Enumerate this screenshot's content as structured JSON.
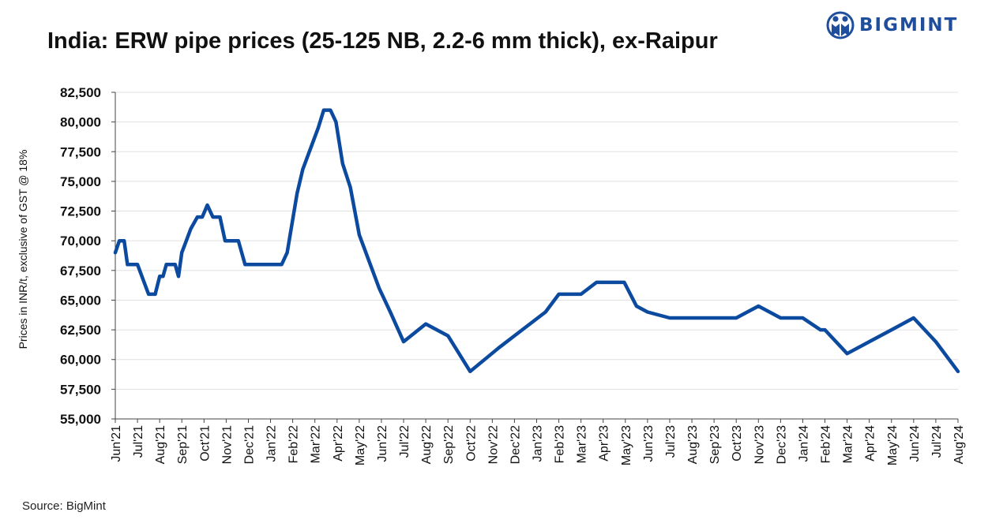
{
  "header": {
    "title": "India: ERW pipe prices (25-125 NB, 2.2-6 mm thick), ex-Raipur",
    "logo_text": "BIGMINT",
    "logo_icon": "bigmint-logo-icon"
  },
  "footer": {
    "source": "Source: BigMint"
  },
  "colors": {
    "line": "#0b4a9e",
    "grid": "#e0e0e0",
    "brand": "#1f4e9c"
  },
  "chart_data": {
    "type": "line",
    "title": "India: ERW pipe prices (25-125 NB, 2.2-6 mm thick), ex-Raipur",
    "xlabel": "",
    "ylabel": "Prices in INR/t, exclusive of GST @ 18%",
    "ylim": [
      55000,
      82500
    ],
    "ytick_step": 2500,
    "yticks": [
      "55,000",
      "57,500",
      "60,000",
      "62,500",
      "65,000",
      "67,500",
      "70,000",
      "72,500",
      "75,000",
      "77,500",
      "80,000",
      "82,500"
    ],
    "xlim": [
      0,
      38
    ],
    "categories": [
      "Jun'21",
      "Jul'21",
      "Aug'21",
      "Sep'21",
      "Oct'21",
      "Nov'21",
      "Dec'21",
      "Jan'22",
      "Feb'22",
      "Mar'22",
      "Apr'22",
      "May'22",
      "Jun'22",
      "Jul'22",
      "Aug'22",
      "Sep'22",
      "Oct'22",
      "Nov'22",
      "Dec'22",
      "Jan'23",
      "Feb'23",
      "Mar'23",
      "Apr'23",
      "May'23",
      "Jun'23",
      "Jul'23",
      "Aug'23",
      "Sep'23",
      "Oct'23",
      "Nov'23",
      "Dec'23",
      "Jan'24",
      "Feb'24",
      "Mar'24",
      "Apr'24",
      "May'24",
      "Jun'24",
      "Jul'24",
      "Aug'24"
    ],
    "grid": true,
    "series": [
      {
        "name": "ERW pipe price",
        "x": [
          0,
          0.18,
          0.4,
          0.55,
          0.75,
          1.0,
          1.5,
          1.65,
          1.8,
          2.0,
          2.15,
          2.3,
          2.5,
          2.7,
          2.85,
          3.0,
          3.2,
          3.4,
          3.7,
          3.92,
          4.15,
          4.4,
          4.72,
          4.95,
          5.1,
          5.25,
          5.55,
          5.85,
          6.2,
          6.65,
          7.05,
          7.5,
          7.75,
          8.2,
          8.45,
          8.85,
          9.15,
          9.4,
          9.7,
          9.95,
          10.25,
          10.6,
          11.0,
          11.2,
          11.5,
          11.9,
          12.4,
          13.0,
          14.0,
          15.0,
          16.0,
          17.3,
          18.0,
          19.4,
          20.0,
          20.4,
          21.0,
          21.7,
          22.3,
          22.95,
          23.5,
          24.0,
          25.0,
          26.0,
          27.0,
          28.0,
          29.0,
          30.0,
          31.0,
          31.8,
          32.0,
          33.0,
          34.0,
          35.0,
          36.0,
          37.0,
          38.0
        ],
        "values": [
          69000,
          70000,
          70000,
          68000,
          68000,
          68000,
          65500,
          65500,
          65500,
          67000,
          67000,
          68000,
          68000,
          68000,
          67000,
          69000,
          70000,
          71000,
          72000,
          72000,
          73000,
          72000,
          72000,
          70000,
          70000,
          70000,
          70000,
          68000,
          68000,
          68000,
          68000,
          68000,
          69000,
          74000,
          76000,
          78000,
          79500,
          81000,
          81000,
          80000,
          76500,
          74500,
          70500,
          69500,
          68000,
          66000,
          64000,
          61500,
          63000,
          62000,
          59000,
          61000,
          62000,
          64000,
          65500,
          65500,
          65500,
          66500,
          66500,
          66500,
          64500,
          64000,
          63500,
          63500,
          63500,
          63500,
          64500,
          63500,
          63500,
          62500,
          62500,
          60500,
          61500,
          62500,
          63500,
          61500,
          59000
        ]
      }
    ]
  }
}
